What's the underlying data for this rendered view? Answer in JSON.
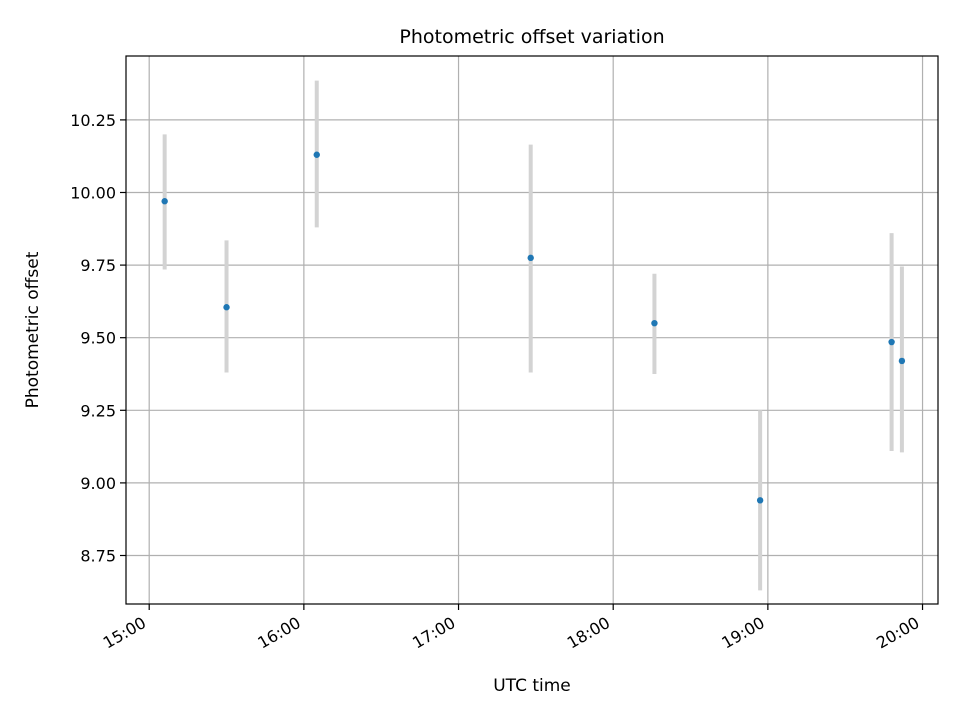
{
  "chart_data": {
    "type": "scatter",
    "title": "Photometric offset variation",
    "xlabel": "UTC time",
    "ylabel": "Photometric offset",
    "xlim": [
      "14:51",
      "20:06"
    ],
    "ylim": [
      8.583,
      10.47
    ],
    "x_ticks": [
      "15:00",
      "16:00",
      "17:00",
      "18:00",
      "19:00",
      "20:00"
    ],
    "y_ticks": [
      "8.75",
      "9.00",
      "9.25",
      "9.50",
      "9.75",
      "10.00",
      "10.25"
    ],
    "grid": true,
    "colors": {
      "point": "#1f77b4",
      "errorbar": "#d3d3d3",
      "grid": "#b0b0b0",
      "axes": "#000000"
    },
    "series": [
      {
        "x": [
          "15:06",
          "15:30",
          "16:05",
          "17:28",
          "18:16",
          "18:57",
          "19:48",
          "19:52"
        ],
        "y": [
          9.97,
          9.605,
          10.13,
          9.775,
          9.55,
          8.94,
          9.485,
          9.42
        ],
        "yerr_low": [
          9.735,
          9.38,
          9.88,
          9.38,
          9.375,
          8.63,
          9.11,
          9.105
        ],
        "yerr_high": [
          10.2,
          9.835,
          10.385,
          10.165,
          9.72,
          9.25,
          9.86,
          9.745
        ]
      }
    ]
  }
}
